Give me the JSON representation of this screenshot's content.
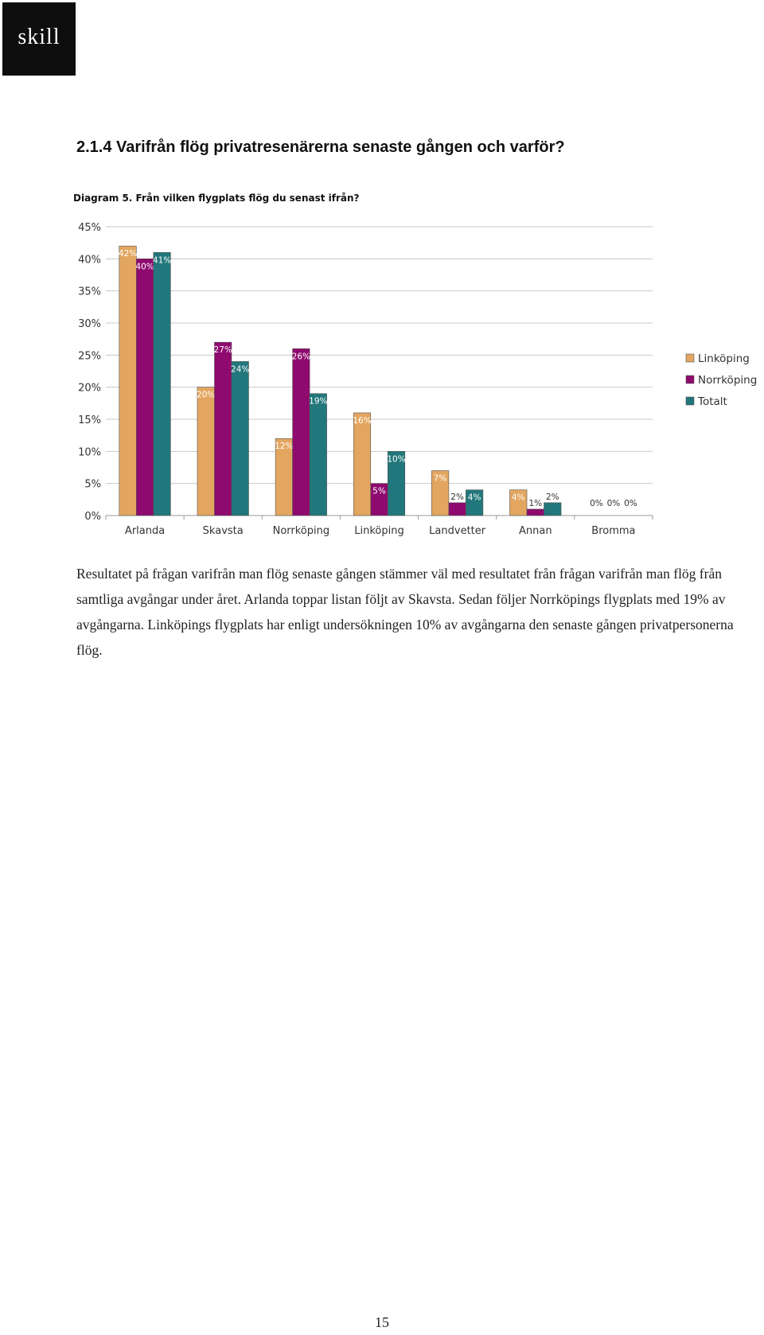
{
  "logo": {
    "text": "skill"
  },
  "heading": "2.1.4 Varifrån flög privatresenärerna senaste gången och varför?",
  "chart_title": "Diagram 5. Från vilken flygplats flög du senast ifrån?",
  "chart_data": {
    "type": "bar",
    "title": "Diagram 5. Från vilken flygplats flög du senast ifrån?",
    "xlabel": "",
    "ylabel": "",
    "ylim": [
      0,
      45
    ],
    "yticks": [
      0,
      5,
      10,
      15,
      20,
      25,
      30,
      35,
      40,
      45
    ],
    "ytick_labels": [
      "0%",
      "5%",
      "10%",
      "15%",
      "20%",
      "25%",
      "30%",
      "35%",
      "40%",
      "45%"
    ],
    "grid": true,
    "legend_position": "right",
    "categories": [
      "Arlanda",
      "Skavsta",
      "Norrköping",
      "Linköping",
      "Landvetter",
      "Annan",
      "Bromma"
    ],
    "series": [
      {
        "name": "Linköping",
        "color": "#E3A660",
        "values": [
          42,
          20,
          12,
          16,
          7,
          4,
          0
        ],
        "labels": [
          "42%",
          "20%",
          "12%",
          "16%",
          "7%",
          "4%",
          "0%"
        ]
      },
      {
        "name": "Norrköping",
        "color": "#8E0A6E",
        "values": [
          40,
          27,
          26,
          5,
          2,
          1,
          0
        ],
        "labels": [
          "40%",
          "27%",
          "26%",
          "5%",
          "2%",
          "1%",
          "0%"
        ]
      },
      {
        "name": "Totalt",
        "color": "#21777B",
        "values": [
          41,
          24,
          19,
          10,
          4,
          2,
          0
        ],
        "labels": [
          "41%",
          "24%",
          "19%",
          "10%",
          "4%",
          "2%",
          "0%"
        ]
      }
    ]
  },
  "body_text": "Resultatet på frågan varifrån man flög senaste gången stämmer väl med resultatet från frågan varifrån man flög från samtliga avgångar under året. Arlanda toppar listan följt av Skavsta. Sedan följer Norrköpings flygplats med 19% av avgångarna. Linköpings flygplats har enligt undersökningen 10% av avgångarna den senaste gången privatpersonerna flög.",
  "page_number": "15"
}
